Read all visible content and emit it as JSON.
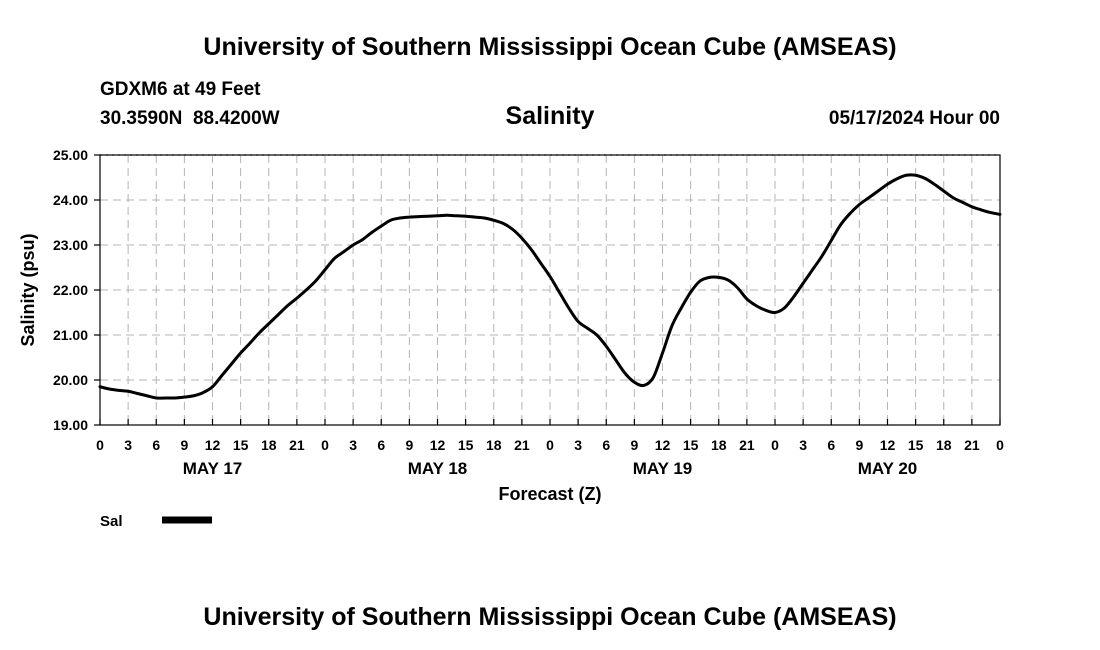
{
  "header": {
    "top_title": "University of Southern Mississippi Ocean Cube (AMSEAS)",
    "station": "GDXM6 at 49 Feet",
    "coords": "30.3590N  88.4200W",
    "datetime": "05/17/2024 Hour 00",
    "bottom_title": "University of Southern Mississippi Ocean Cube (AMSEAS)"
  },
  "legend": {
    "label": "Sal",
    "color": "#000000"
  },
  "chart_data": {
    "type": "line",
    "title": "Salinity",
    "xlabel": "Forecast (Z)",
    "ylabel": "Salinity (psu)",
    "ylim": [
      19.0,
      25.0
    ],
    "yticks": [
      "19.00",
      "20.00",
      "21.00",
      "22.00",
      "23.00",
      "24.00",
      "25.00"
    ],
    "xlim": [
      0,
      96
    ],
    "xtick_hours": [
      0,
      3,
      6,
      9,
      12,
      15,
      18,
      21,
      24,
      27,
      30,
      33,
      36,
      39,
      42,
      45,
      48,
      51,
      54,
      57,
      60,
      63,
      66,
      69,
      72,
      75,
      78,
      81,
      84,
      87,
      90,
      93,
      96
    ],
    "xtick_labels": [
      "0",
      "3",
      "6",
      "9",
      "12",
      "15",
      "18",
      "21",
      "0",
      "3",
      "6",
      "9",
      "12",
      "15",
      "18",
      "21",
      "0",
      "3",
      "6",
      "9",
      "12",
      "15",
      "18",
      "21",
      "0",
      "3",
      "6",
      "9",
      "12",
      "15",
      "18",
      "21",
      "0"
    ],
    "day_labels": [
      {
        "label": "MAY 17",
        "hour": 12
      },
      {
        "label": "MAY 18",
        "hour": 36
      },
      {
        "label": "MAY 19",
        "hour": 60
      },
      {
        "label": "MAY 20",
        "hour": 84
      }
    ],
    "grid": true,
    "series": [
      {
        "name": "Sal",
        "x": [
          0,
          1,
          2,
          3,
          4,
          5,
          6,
          7,
          8,
          9,
          10,
          11,
          12,
          13,
          14,
          15,
          16,
          17,
          18,
          19,
          20,
          21,
          22,
          23,
          24,
          25,
          26,
          27,
          28,
          29,
          30,
          31,
          32,
          33,
          34,
          35,
          36,
          37,
          38,
          39,
          40,
          41,
          42,
          43,
          44,
          45,
          46,
          47,
          48,
          49,
          50,
          51,
          52,
          53,
          54,
          55,
          56,
          57,
          58,
          59,
          60,
          61,
          62,
          63,
          64,
          65,
          66,
          67,
          68,
          69,
          70,
          71,
          72,
          73,
          74,
          75,
          76,
          77,
          78,
          79,
          80,
          81,
          82,
          83,
          84,
          85,
          86,
          87,
          88,
          89,
          90,
          91,
          92,
          93,
          94,
          95,
          96
        ],
        "values": [
          19.85,
          19.8,
          19.77,
          19.75,
          19.7,
          19.65,
          19.6,
          19.6,
          19.6,
          19.62,
          19.65,
          19.72,
          19.85,
          20.1,
          20.35,
          20.6,
          20.82,
          21.05,
          21.25,
          21.45,
          21.65,
          21.82,
          22.0,
          22.2,
          22.45,
          22.7,
          22.85,
          23.0,
          23.12,
          23.28,
          23.42,
          23.55,
          23.6,
          23.62,
          23.63,
          23.64,
          23.65,
          23.66,
          23.65,
          23.64,
          23.62,
          23.6,
          23.55,
          23.48,
          23.35,
          23.15,
          22.9,
          22.6,
          22.3,
          21.95,
          21.6,
          21.3,
          21.15,
          21.0,
          20.75,
          20.45,
          20.15,
          19.95,
          19.88,
          20.05,
          20.6,
          21.2,
          21.6,
          21.95,
          22.2,
          22.28,
          22.28,
          22.22,
          22.05,
          21.8,
          21.65,
          21.55,
          21.5,
          21.6,
          21.85,
          22.15,
          22.45,
          22.75,
          23.1,
          23.45,
          23.7,
          23.9,
          24.05,
          24.2,
          24.35,
          24.47,
          24.55,
          24.55,
          24.48,
          24.35,
          24.2,
          24.05,
          23.95,
          23.85,
          23.78,
          23.72,
          23.68
        ]
      }
    ]
  }
}
